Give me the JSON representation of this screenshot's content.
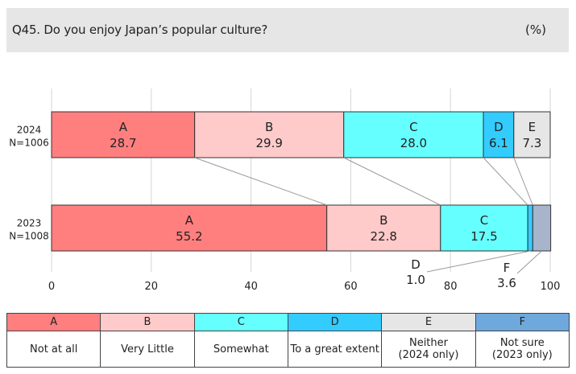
{
  "header": {
    "question": "Q45. Do you enjoy Japan’s popular culture?",
    "unit": "(%)"
  },
  "chart_data": {
    "type": "bar",
    "orientation": "horizontal",
    "stacked": true,
    "xlim": [
      0,
      100
    ],
    "xticks": [
      0,
      20,
      40,
      60,
      80,
      100
    ],
    "grid": true,
    "legend_position": "bottom",
    "rows": [
      {
        "label_year": "2024",
        "label_n": "N=1006",
        "segments": [
          {
            "code": "A",
            "value": 28.7,
            "label": "28.7"
          },
          {
            "code": "B",
            "value": 29.9,
            "label": "29.9"
          },
          {
            "code": "C",
            "value": 28.0,
            "label": "28.0"
          },
          {
            "code": "D",
            "value": 6.1,
            "label": "6.1"
          },
          {
            "code": "E",
            "value": 7.3,
            "label": "7.3"
          }
        ]
      },
      {
        "label_year": "2023",
        "label_n": "N=1008",
        "segments": [
          {
            "code": "A",
            "value": 55.2,
            "label": "55.2"
          },
          {
            "code": "B",
            "value": 22.8,
            "label": "22.8"
          },
          {
            "code": "C",
            "value": 17.5,
            "label": "17.5"
          },
          {
            "code": "D",
            "value": 1.0,
            "label": "1.0"
          },
          {
            "code": "F",
            "value": 3.6,
            "label": "3.6"
          }
        ]
      }
    ],
    "legend": [
      {
        "code": "A",
        "name": "Not at all",
        "color": "#ff7f7f"
      },
      {
        "code": "B",
        "name": "Very Little",
        "color": "#ffcaca"
      },
      {
        "code": "C",
        "name": "Somewhat",
        "color": "#66ffff"
      },
      {
        "code": "D",
        "name": "To a great extent",
        "color": "#33ccff"
      },
      {
        "code": "E",
        "name": "Neither\n(2024 only)",
        "color": "#e6e6e6"
      },
      {
        "code": "F",
        "name": "Not sure\n(2023 only)",
        "color": "#6fa8dc"
      }
    ],
    "segment_colors": {
      "A": "#ff7f7f",
      "B": "#ffcaca",
      "C": "#66ffff",
      "D": "#33ccff",
      "E": "#e6e6e6",
      "F": "#a8b4cc"
    }
  }
}
